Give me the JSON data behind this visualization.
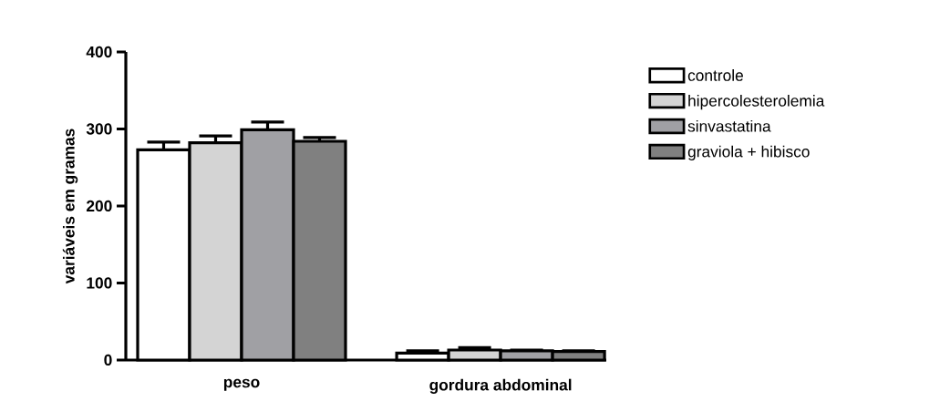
{
  "chart_data": {
    "type": "bar",
    "ylabel": "variáveis em gramas",
    "categories": [
      "peso",
      "gordura abdominal"
    ],
    "series": [
      {
        "name": "controle",
        "color": "#ffffff",
        "values": [
          273,
          9
        ],
        "errors": [
          10,
          3
        ]
      },
      {
        "name": "hipercolesterolemia",
        "color": "#d4d4d4",
        "values": [
          282,
          13
        ],
        "errors": [
          9,
          3
        ]
      },
      {
        "name": "sinvastatina",
        "color": "#a0a0a4",
        "values": [
          299,
          12
        ],
        "errors": [
          10,
          1
        ]
      },
      {
        "name": "graviola + hibisco",
        "color": "#808080",
        "values": [
          284,
          11
        ],
        "errors": [
          5,
          1
        ]
      }
    ],
    "ylim": [
      0,
      400
    ],
    "yticks": [
      0,
      100,
      200,
      300,
      400
    ],
    "legend": "top right"
  }
}
